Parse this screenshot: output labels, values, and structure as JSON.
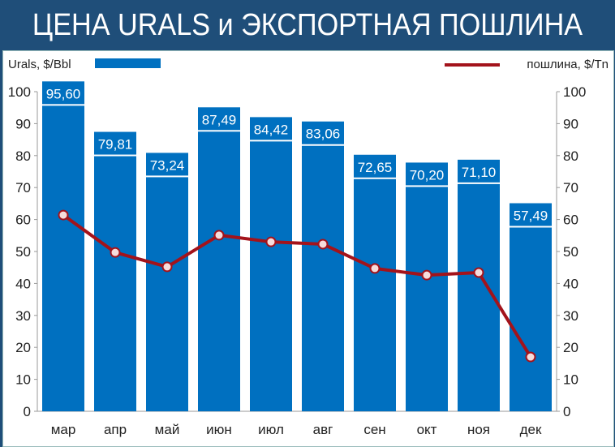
{
  "header": {
    "title": "ЦЕНА URALS и ЭКСПОРТНАЯ ПОШЛИНА"
  },
  "chart_data": {
    "type": "bar+line",
    "title": "ЦЕНА URALS и ЭКСПОРТНАЯ ПОШЛИНА",
    "categories": [
      "мар",
      "апр",
      "май",
      "июн",
      "июл",
      "авг",
      "сен",
      "окт",
      "ноя",
      "дек"
    ],
    "series": [
      {
        "name": "Urals, $/Bbl",
        "type": "bar",
        "axis": "left",
        "color": "#0070c0",
        "values": [
          95.6,
          79.81,
          73.24,
          87.49,
          84.42,
          83.06,
          72.65,
          70.2,
          71.1,
          57.49
        ],
        "labels": [
          "95,60",
          "79,81",
          "73,24",
          "87,49",
          "84,42",
          "83,06",
          "72,65",
          "70,20",
          "71,10",
          "57,49"
        ]
      },
      {
        "name": "пошлина, $/Tn",
        "type": "line",
        "axis": "right",
        "color": "#a3131b",
        "values": [
          61.4,
          49.7,
          45.2,
          55.1,
          53.0,
          52.3,
          44.7,
          42.6,
          43.4,
          17.0
        ]
      }
    ],
    "yticks": [
      "0",
      "10",
      "20",
      "30",
      "40",
      "50",
      "60",
      "70",
      "80",
      "90",
      "100"
    ],
    "ylim": [
      0,
      100
    ],
    "y2lim": [
      0,
      100
    ],
    "grid": false,
    "legend": "top"
  }
}
